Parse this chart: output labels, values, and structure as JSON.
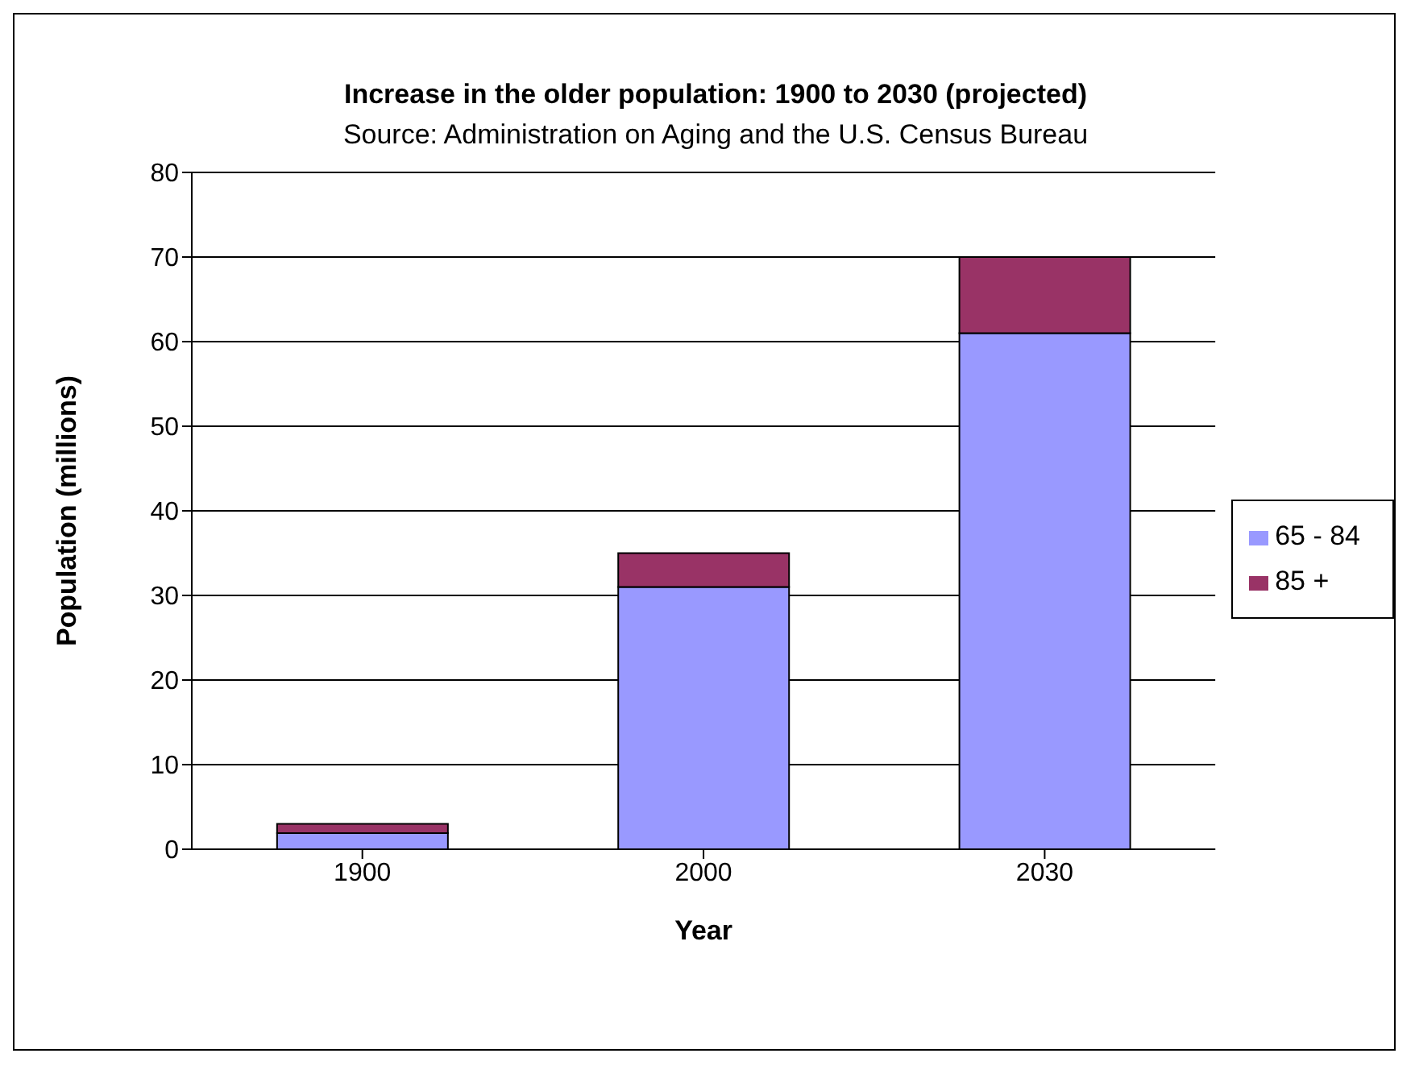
{
  "chart_data": {
    "type": "bar",
    "title": "Increase in the older population: 1900 to 2030 (projected)",
    "subtitle": "Source: Administration on Aging and the U.S. Census Bureau",
    "xlabel": "Year",
    "ylabel": "Population (millions)",
    "categories": [
      "1900",
      "2000",
      "2030"
    ],
    "stacked": true,
    "series": [
      {
        "name": "65 - 84",
        "color": "#9999ff",
        "values": [
          1.9,
          31,
          61
        ]
      },
      {
        "name": "85 +",
        "color": "#993366",
        "values": [
          1.1,
          4,
          9
        ]
      }
    ],
    "ylim": [
      0,
      80
    ],
    "yticks": [
      0,
      10,
      20,
      30,
      40,
      50,
      60,
      70,
      80
    ],
    "grid": "y",
    "legend": "right"
  }
}
